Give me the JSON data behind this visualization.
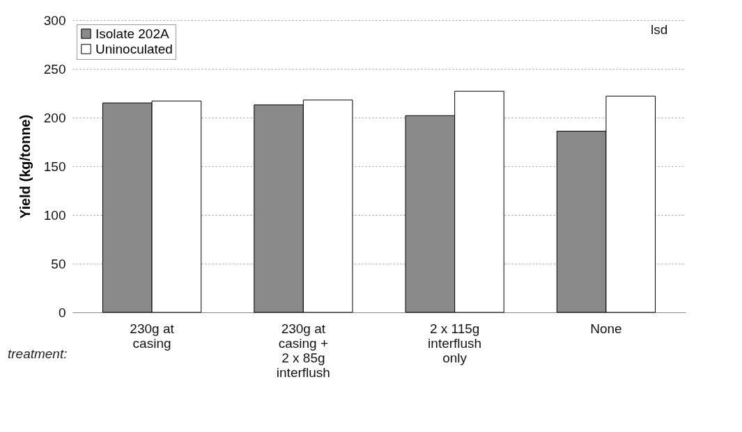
{
  "chart_data": {
    "type": "bar",
    "xlabel": "treatment:",
    "ylabel": "Yield (kg/tonne)",
    "categories": [
      "230g at casing",
      "230g at casing + 2 x 85g interflush",
      "2 x 115g interflush only",
      "None"
    ],
    "series": [
      {
        "name": "Isolate 202A",
        "color": "#8a8a8a",
        "values": [
          215,
          213,
          202,
          186
        ]
      },
      {
        "name": "Uninoculated",
        "color": "#ffffff",
        "values": [
          217,
          218,
          227,
          222
        ]
      }
    ],
    "ylim": [
      0,
      300
    ],
    "yticks": [
      0,
      50,
      100,
      150,
      200,
      250,
      300
    ],
    "grid": "y",
    "legend": "top left",
    "annotations": [
      "lsd"
    ]
  }
}
